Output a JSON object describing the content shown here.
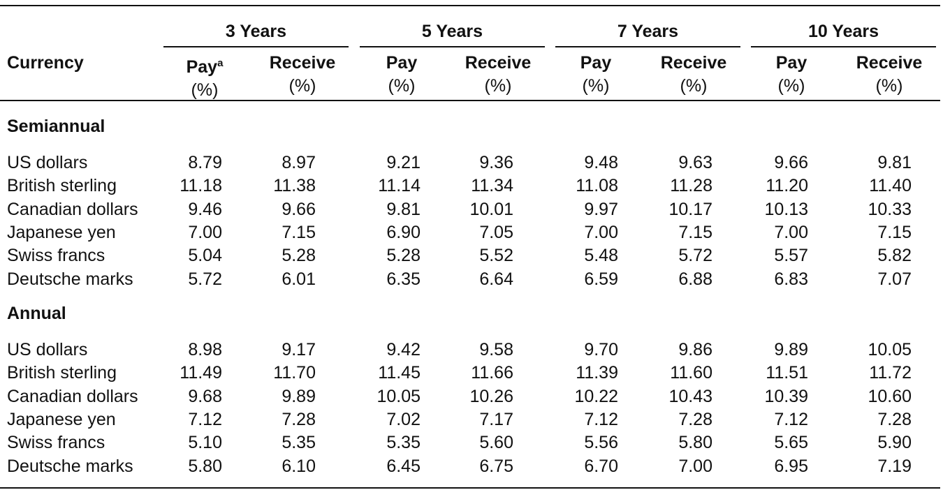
{
  "header": {
    "currency_label": "Currency",
    "groups": [
      "3 Years",
      "5 Years",
      "7 Years",
      "10 Years"
    ],
    "pay_label": "Pay",
    "pay_footnote_marker": "a",
    "receive_label": "Receive",
    "unit_label": "(%)"
  },
  "sections": [
    {
      "title": "Semiannual",
      "rows": [
        {
          "currency": "US dollars",
          "values": [
            "8.79",
            "8.97",
            "9.21",
            "9.36",
            "9.48",
            "9.63",
            "9.66",
            "9.81"
          ]
        },
        {
          "currency": "British sterling",
          "values": [
            "11.18",
            "11.38",
            "11.14",
            "11.34",
            "11.08",
            "11.28",
            "11.20",
            "11.40"
          ]
        },
        {
          "currency": "Canadian dollars",
          "values": [
            "9.46",
            "9.66",
            "9.81",
            "10.01",
            "9.97",
            "10.17",
            "10.13",
            "10.33"
          ]
        },
        {
          "currency": "Japanese yen",
          "values": [
            "7.00",
            "7.15",
            "6.90",
            "7.05",
            "7.00",
            "7.15",
            "7.00",
            "7.15"
          ]
        },
        {
          "currency": "Swiss francs",
          "values": [
            "5.04",
            "5.28",
            "5.28",
            "5.52",
            "5.48",
            "5.72",
            "5.57",
            "5.82"
          ]
        },
        {
          "currency": "Deutsche marks",
          "values": [
            "5.72",
            "6.01",
            "6.35",
            "6.64",
            "6.59",
            "6.88",
            "6.83",
            "7.07"
          ]
        }
      ]
    },
    {
      "title": "Annual",
      "rows": [
        {
          "currency": "US dollars",
          "values": [
            "8.98",
            "9.17",
            "9.42",
            "9.58",
            "9.70",
            "9.86",
            "9.89",
            "10.05"
          ]
        },
        {
          "currency": "British sterling",
          "values": [
            "11.49",
            "11.70",
            "11.45",
            "11.66",
            "11.39",
            "11.60",
            "11.51",
            "11.72"
          ]
        },
        {
          "currency": "Canadian dollars",
          "values": [
            "9.68",
            "9.89",
            "10.05",
            "10.26",
            "10.22",
            "10.43",
            "10.39",
            "10.60"
          ]
        },
        {
          "currency": "Japanese yen",
          "values": [
            "7.12",
            "7.28",
            "7.02",
            "7.17",
            "7.12",
            "7.28",
            "7.12",
            "7.28"
          ]
        },
        {
          "currency": "Swiss francs",
          "values": [
            "5.10",
            "5.35",
            "5.35",
            "5.60",
            "5.56",
            "5.80",
            "5.65",
            "5.90"
          ]
        },
        {
          "currency": "Deutsche marks",
          "values": [
            "5.80",
            "6.10",
            "6.45",
            "6.75",
            "6.70",
            "7.00",
            "6.95",
            "7.19"
          ]
        }
      ]
    }
  ]
}
